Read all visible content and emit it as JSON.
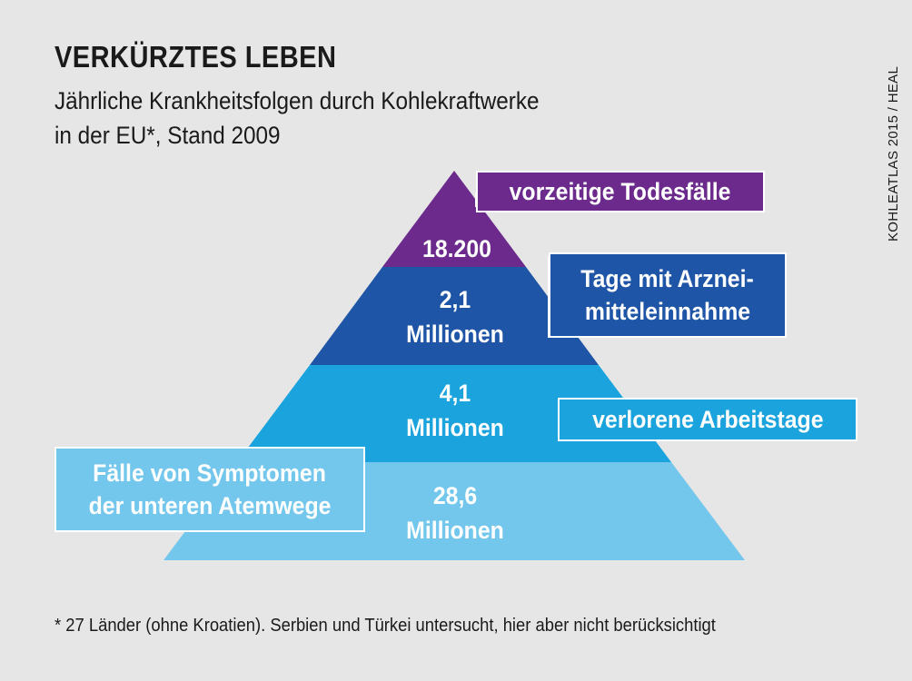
{
  "title": "VERKÜRZTES LEBEN",
  "subtitle": {
    "line1": "Jährliche Krankheitsfolgen durch Kohlekraftwerke",
    "line2": "in der EU*, Stand 2009"
  },
  "source": "KOHLEATLAS 2015 / HEAL",
  "colors": {
    "background": "#e6e6e6",
    "purple": "#6b2a8c",
    "dark_blue": "#1f55a6",
    "mid_blue": "#1aa3dc",
    "light_blue": "#74c7ec"
  },
  "levels": [
    {
      "value_line1": "18.200",
      "value_line2": "",
      "label_line1": "vorzeitige Todesfälle",
      "label_line2": ""
    },
    {
      "value_line1": "2,1",
      "value_line2": "Millionen",
      "label_line1": "Tage mit Arznei-",
      "label_line2": "mitteleinnahme"
    },
    {
      "value_line1": "4,1",
      "value_line2": "Millionen",
      "label_line1": "verlorene Arbeitstage",
      "label_line2": ""
    },
    {
      "value_line1": "28,6",
      "value_line2": "Millionen",
      "label_line1": "Fälle von Symptomen",
      "label_line2": "der unteren Atemwege"
    }
  ],
  "footnote": "* 27 Länder (ohne Kroatien). Serbien und Türkei untersucht, hier aber nicht berücksichtigt"
}
